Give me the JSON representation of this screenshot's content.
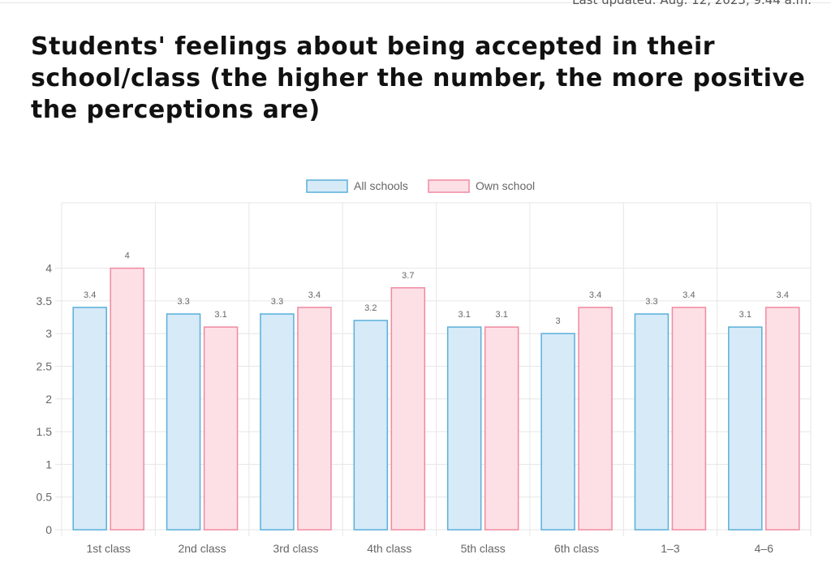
{
  "last_updated": "Last updated: Aug. 12, 2023, 9.44 a.m.",
  "chart_data": {
    "type": "bar",
    "title": "Students' feelings about being accepted in their school/class (the higher the number, the more positive the perceptions are)",
    "categories": [
      "1st class",
      "2nd class",
      "3rd class",
      "4th class",
      "5th class",
      "6th class",
      "1–3",
      "4–6"
    ],
    "series": [
      {
        "name": "All schools",
        "color": "#5aafd9",
        "fill": "#d6eaf8",
        "values": [
          3.4,
          3.3,
          3.3,
          3.2,
          3.1,
          3,
          3.3,
          3.1
        ]
      },
      {
        "name": "Own school",
        "color": "#f08aa0",
        "fill": "#fde0e6",
        "values": [
          4,
          3.1,
          3.4,
          3.7,
          3.1,
          3.4,
          3.4,
          3.4
        ]
      }
    ],
    "ylim": [
      0,
      5
    ],
    "yticks": [
      0,
      0.5,
      1,
      1.5,
      2,
      2.5,
      3,
      3.5,
      4
    ],
    "grid": true,
    "legend": "top"
  }
}
